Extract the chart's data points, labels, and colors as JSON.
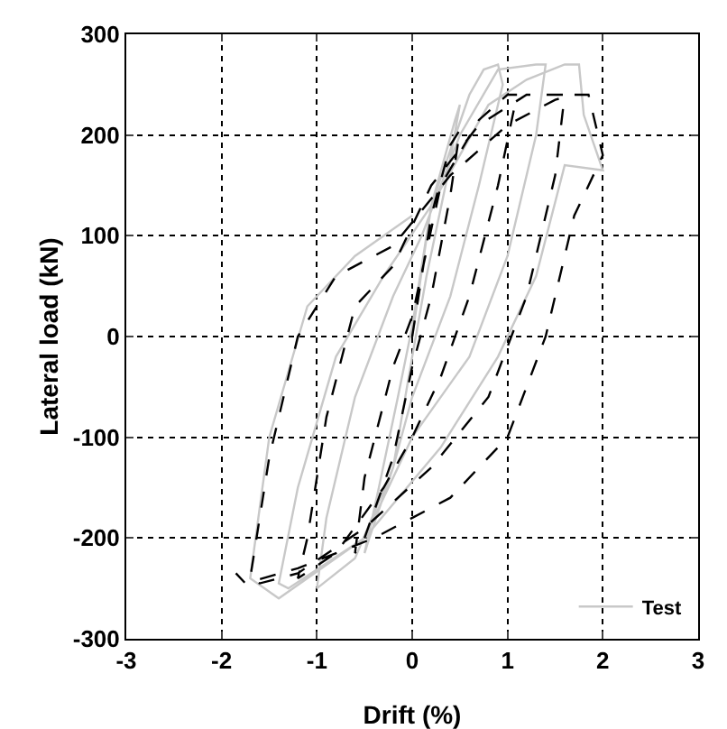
{
  "chart_data": {
    "type": "line",
    "xlabel": "Drift (%)",
    "ylabel": "Lateral load (kN)",
    "xlim": [
      -3,
      3
    ],
    "ylim": [
      -300,
      300
    ],
    "xticks": [
      -3,
      -2,
      -1,
      0,
      1,
      2,
      3
    ],
    "yticks": [
      -300,
      -200,
      -100,
      0,
      100,
      200,
      300
    ],
    "grid": true,
    "legend": "bottom right",
    "marker": "none",
    "series": [
      {
        "name": "Test",
        "color": "#c8c8c8",
        "line_style": "solid",
        "x": [
          0,
          0.2,
          0.45,
          0.5,
          0.35,
          0.15,
          0,
          -0.2,
          -0.45,
          -0.5,
          -0.35,
          -0.15,
          0,
          0.2,
          0.6,
          0.75,
          0.9,
          0.95,
          0.7,
          0.4,
          0,
          -0.2,
          -0.6,
          -1.0,
          -0.9,
          -0.6,
          -0.2,
          0.1,
          0.5,
          0.9,
          1.3,
          1.4,
          1.3,
          1.0,
          0.6,
          0,
          -0.5,
          -1.3,
          -1.4,
          -1.2,
          -0.8,
          -0.3,
          0.2,
          0.8,
          1.2,
          1.6,
          1.75,
          1.8,
          2.0,
          1.6,
          1.3,
          0.9,
          0.3,
          -0.5,
          -1.4,
          -1.7,
          -1.5,
          -1.1,
          -0.6,
          0
        ],
        "values": [
          0,
          130,
          215,
          230,
          150,
          60,
          -20,
          -130,
          -200,
          -215,
          -150,
          -60,
          10,
          130,
          240,
          265,
          270,
          250,
          150,
          40,
          -60,
          -130,
          -220,
          -250,
          -180,
          -60,
          40,
          100,
          200,
          265,
          270,
          270,
          200,
          80,
          -20,
          -100,
          -200,
          -250,
          -245,
          -150,
          -20,
          60,
          130,
          230,
          255,
          270,
          270,
          220,
          165,
          170,
          60,
          -20,
          -110,
          -200,
          -260,
          -240,
          -100,
          30,
          80,
          120
        ]
      },
      {
        "color": "#000000",
        "line_style": "dashed",
        "x": [
          0,
          0.2,
          0.4,
          0.5,
          0.4,
          0.2,
          0,
          -0.2,
          -0.5,
          -0.6,
          -0.5,
          -0.2,
          0,
          0.3,
          0.7,
          1.0,
          1.1,
          0.9,
          0.6,
          0.3,
          0,
          -0.3,
          -0.8,
          -1.2,
          -1.1,
          -0.9,
          -0.6,
          -0.2,
          0.2,
          0.7,
          1.2,
          1.5,
          1.6,
          1.5,
          1.2,
          0.8,
          0.2,
          -0.5,
          -1.2,
          -1.6,
          -1.7,
          -1.5,
          -1.2,
          -0.8,
          -0.2,
          0.4,
          1.0,
          1.5,
          1.7,
          1.85,
          2.0,
          1.7,
          1.4,
          1.0,
          0.4,
          -0.4,
          -1.2,
          -1.75,
          -1.85
        ],
        "values": [
          0,
          120,
          190,
          205,
          140,
          40,
          -30,
          -120,
          -200,
          -215,
          -140,
          -30,
          20,
          150,
          215,
          240,
          240,
          150,
          40,
          -40,
          -100,
          -150,
          -215,
          -240,
          -200,
          -80,
          30,
          70,
          150,
          210,
          240,
          240,
          240,
          160,
          40,
          -60,
          -130,
          -190,
          -235,
          -245,
          -240,
          -120,
          0,
          60,
          90,
          160,
          210,
          235,
          240,
          240,
          180,
          120,
          0,
          -100,
          -160,
          -200,
          -230,
          -245,
          -235
        ]
      }
    ]
  }
}
